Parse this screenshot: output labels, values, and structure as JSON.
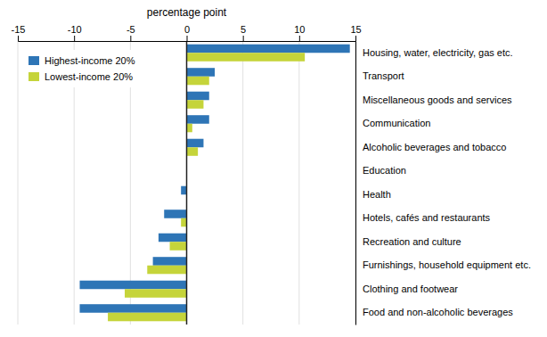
{
  "chart_data": {
    "type": "bar",
    "orientation": "horizontal",
    "xlabel": "percentage point",
    "categories": [
      "Housing, water, electricity, gas etc.",
      "Transport",
      "Miscellaneous goods and services",
      "Communication",
      "Alcoholic beverages and tobacco",
      "Education",
      "Health",
      "Hotels, cafés and restaurants",
      "Recreation and culture",
      "Furnishings, household equipment etc.",
      "Clothing and footwear",
      "Food and non-alcoholic beverages"
    ],
    "series": [
      {
        "name": "Highest-income 20%",
        "color": "#2E75B6",
        "values": [
          14.5,
          2.5,
          2.0,
          2.0,
          1.5,
          0.0,
          -0.5,
          -2.0,
          -2.5,
          -3.0,
          -9.5,
          -9.5
        ]
      },
      {
        "name": "Lowest-income 20%",
        "color": "#C5D43A",
        "values": [
          10.5,
          2.0,
          1.5,
          0.5,
          1.0,
          0.0,
          0.0,
          -0.5,
          -1.5,
          -3.5,
          -5.5,
          -7.0
        ]
      }
    ],
    "xlim": [
      -15,
      15
    ],
    "xticks": [
      -15,
      -10,
      -5,
      0,
      5,
      10,
      15
    ],
    "grid": true,
    "legend": "upper left"
  }
}
